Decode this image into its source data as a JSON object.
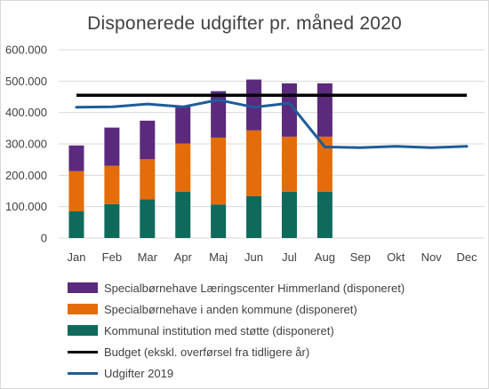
{
  "title": "Disponerede udgifter pr. måned 2020",
  "colors": {
    "purple": "#5b2a7d",
    "orange": "#e46c0a",
    "green": "#0f6a5c",
    "black": "#000000",
    "blue": "#1f5c99",
    "grid": "#d9d9d9",
    "text": "#404040"
  },
  "chart_data": {
    "type": "bar",
    "stacked": true,
    "categories": [
      "Jan",
      "Feb",
      "Mar",
      "Apr",
      "Maj",
      "Jun",
      "Jul",
      "Aug",
      "Sep",
      "Okt",
      "Nov",
      "Dec"
    ],
    "ylim": [
      0,
      600000
    ],
    "yticks": [
      "0",
      "100.000",
      "200.000",
      "300.000",
      "400.000",
      "500.000",
      "600.000"
    ],
    "grid": true,
    "legend_position": "bottom",
    "series": [
      {
        "name": "Kommunal institution med støtte (disponeret)",
        "kind": "bar",
        "color": "#0f6a5c",
        "values": [
          85000,
          108000,
          123000,
          148000,
          107000,
          133000,
          148000,
          148000,
          null,
          null,
          null,
          null
        ]
      },
      {
        "name": "Specialbørnehave i anden kommune (disponeret)",
        "kind": "bar",
        "color": "#e46c0a",
        "values": [
          128000,
          122000,
          128000,
          153000,
          213000,
          210000,
          175000,
          175000,
          null,
          null,
          null,
          null
        ]
      },
      {
        "name": "Specialbørnehave Læringscenter Himmerland (disponeret)",
        "kind": "bar",
        "color": "#5b2a7d",
        "values": [
          82000,
          122000,
          123000,
          118000,
          148000,
          162000,
          170000,
          170000,
          null,
          null,
          null,
          null
        ]
      },
      {
        "name": "Budget (ekskl. overførsel fra tidligere år)",
        "kind": "line",
        "color": "#000000",
        "values": [
          455000,
          455000,
          455000,
          455000,
          455000,
          455000,
          455000,
          455000,
          455000,
          455000,
          455000,
          455000
        ]
      },
      {
        "name": "Udgifter 2019",
        "kind": "line",
        "color": "#1f5c99",
        "values": [
          417000,
          418000,
          427000,
          418000,
          440000,
          417000,
          430000,
          290000,
          288000,
          292000,
          288000,
          292000
        ]
      }
    ],
    "legend_order": [
      "Specialbørnehave Læringscenter Himmerland (disponeret)",
      "Specialbørnehave i anden kommune (disponeret)",
      "Kommunal institution med støtte (disponeret)",
      "Budget (ekskl. overførsel fra tidligere år)",
      "Udgifter 2019"
    ]
  }
}
